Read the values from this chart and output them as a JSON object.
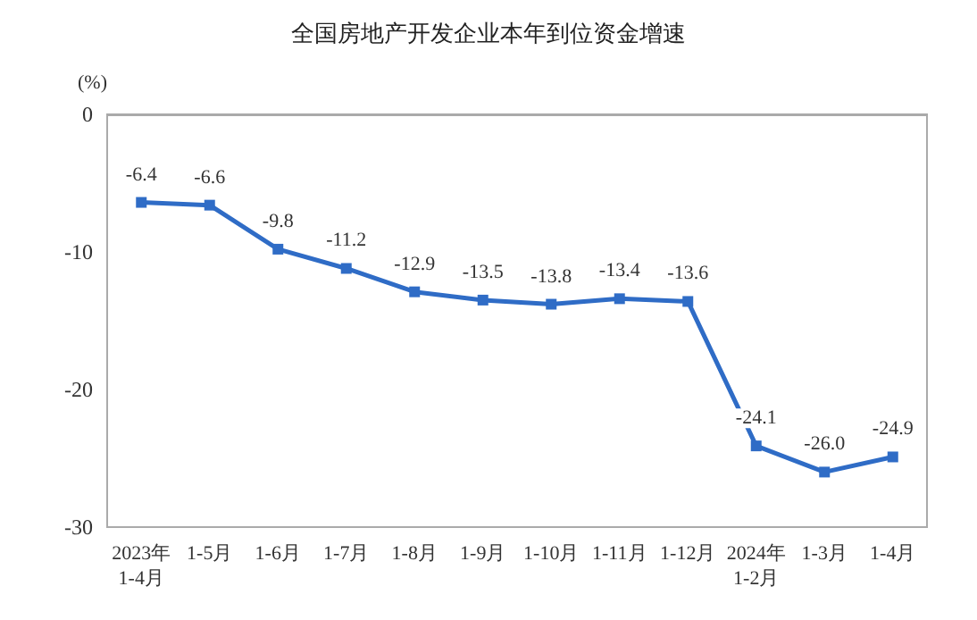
{
  "chart_data": {
    "type": "line",
    "title": "全国房地产开发企业本年到位资金增速",
    "ylabel": "(%)",
    "categories": [
      "2023年\n1-4月",
      "1-5月",
      "1-6月",
      "1-7月",
      "1-8月",
      "1-9月",
      "1-10月",
      "1-11月",
      "1-12月",
      "2024年\n1-2月",
      "1-3月",
      "1-4月"
    ],
    "series": [
      {
        "color": "#2f6cc6",
        "values": [
          -6.4,
          -6.6,
          -9.8,
          -11.2,
          -12.9,
          -13.5,
          -13.8,
          -13.4,
          -13.6,
          -24.1,
          -26.0,
          -24.9
        ],
        "value_labels": [
          "-6.4",
          "-6.6",
          "-9.8",
          "-11.2",
          "-12.9",
          "-13.5",
          "-13.8",
          "-13.4",
          "-13.6",
          "-24.1",
          "-26.0",
          "-24.9"
        ]
      }
    ],
    "ylim": [
      -30,
      0
    ],
    "yticks": [
      -30,
      -20,
      -10,
      0
    ],
    "grid": false,
    "marker": "square",
    "line_style": "solid"
  }
}
